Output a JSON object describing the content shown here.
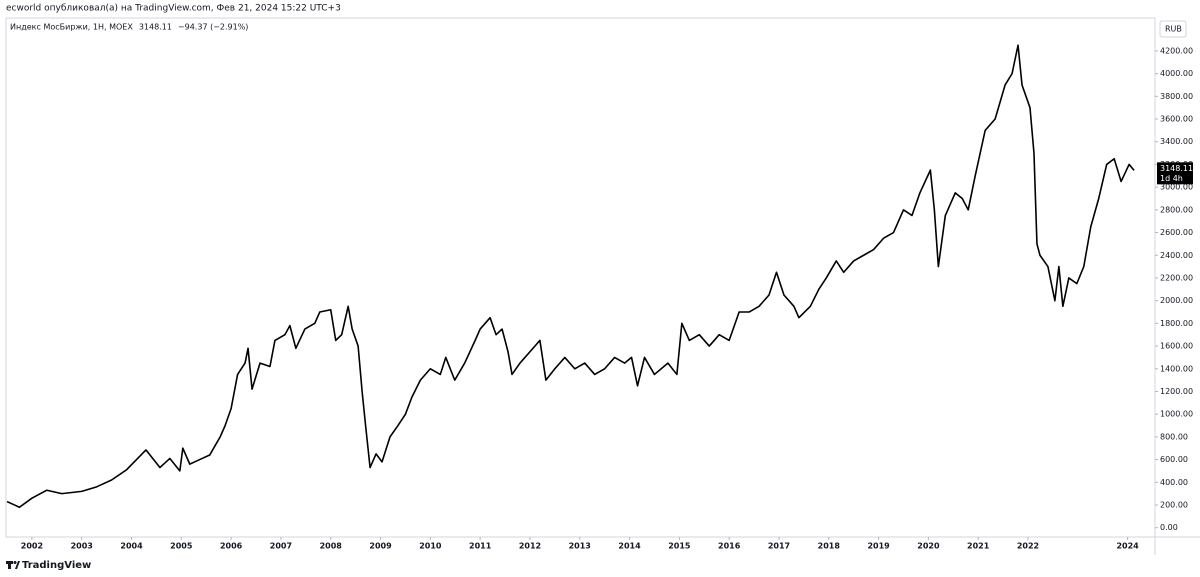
{
  "chart_data": {
    "type": "line",
    "header": "ecworld опубликовал(а) на TradingView.com, Фев 21, 2024 15:22 UTC+3",
    "title": "Индекс МосБиржи, 1Н, MOEX",
    "change": "−94.37 (−2.91%)",
    "currency": "RUB",
    "countdown": "1d 4h",
    "brand": "TradingView",
    "x": [
      2001.5,
      2001.75,
      2002.0,
      2002.3,
      2002.6,
      2003.0,
      2003.3,
      2003.6,
      2003.9,
      2004.29,
      2004.57,
      2004.77,
      2004.97,
      2005.03,
      2005.17,
      2005.37,
      2005.57,
      2005.78,
      2005.88,
      2006.0,
      2006.13,
      2006.28,
      2006.34,
      2006.42,
      2006.58,
      2006.78,
      2006.88,
      2007.08,
      2007.18,
      2007.3,
      2007.48,
      2007.68,
      2007.78,
      2008.0,
      2008.1,
      2008.22,
      2008.35,
      2008.43,
      2008.55,
      2008.63,
      2008.7,
      2008.79,
      2008.91,
      2009.03,
      2009.19,
      2009.35,
      2009.5,
      2009.63,
      2009.8,
      2010.0,
      2010.2,
      2010.31,
      2010.49,
      2010.69,
      2010.9,
      2011.0,
      2011.2,
      2011.32,
      2011.44,
      2011.56,
      2011.64,
      2011.8,
      2012.0,
      2012.2,
      2012.32,
      2012.5,
      2012.7,
      2012.9,
      2013.1,
      2013.3,
      2013.5,
      2013.7,
      2013.9,
      2014.04,
      2014.16,
      2014.3,
      2014.5,
      2014.77,
      2014.95,
      2015.05,
      2015.2,
      2015.4,
      2015.6,
      2015.8,
      2016.0,
      2016.2,
      2016.4,
      2016.6,
      2016.8,
      2016.95,
      2017.1,
      2017.3,
      2017.4,
      2017.63,
      2017.8,
      2017.95,
      2018.15,
      2018.3,
      2018.5,
      2018.7,
      2018.9,
      2019.1,
      2019.3,
      2019.5,
      2019.67,
      2019.83,
      2020.04,
      2020.12,
      2020.2,
      2020.34,
      2020.54,
      2020.68,
      2020.8,
      2020.94,
      2021.14,
      2021.34,
      2021.54,
      2021.68,
      2021.8,
      2021.88,
      2022.04,
      2022.12,
      2022.18,
      2022.24,
      2022.4,
      2022.54,
      2022.62,
      2022.7,
      2022.82,
      2022.98,
      2023.12,
      2023.26,
      2023.42,
      2023.58,
      2023.73,
      2023.87,
      2024.03,
      2024.13
    ],
    "series": [
      {
        "color": "#000000",
        "values": [
          230,
          180,
          260,
          330,
          300,
          320,
          360,
          420,
          510,
          685,
          530,
          610,
          500,
          700,
          560,
          600,
          640,
          800,
          900,
          1050,
          1350,
          1450,
          1580,
          1220,
          1450,
          1420,
          1650,
          1700,
          1780,
          1580,
          1750,
          1800,
          1900,
          1920,
          1650,
          1700,
          1950,
          1750,
          1600,
          1200,
          900,
          530,
          650,
          580,
          800,
          900,
          1000,
          1150,
          1300,
          1400,
          1350,
          1500,
          1300,
          1450,
          1650,
          1750,
          1850,
          1700,
          1750,
          1550,
          1350,
          1450,
          1550,
          1650,
          1300,
          1400,
          1500,
          1400,
          1450,
          1350,
          1400,
          1500,
          1450,
          1500,
          1250,
          1500,
          1350,
          1450,
          1350,
          1800,
          1650,
          1700,
          1600,
          1700,
          1650,
          1900,
          1900,
          1950,
          2050,
          2250,
          2050,
          1950,
          1850,
          1950,
          2100,
          2200,
          2350,
          2250,
          2350,
          2400,
          2450,
          2550,
          2600,
          2800,
          2750,
          2950,
          3150,
          2800,
          2300,
          2750,
          2950,
          2900,
          2800,
          3100,
          3500,
          3600,
          3900,
          4000,
          4250,
          3900,
          3700,
          3300,
          2500,
          2400,
          2300,
          2000,
          2300,
          1950,
          2200,
          2150,
          2300,
          2650,
          2900,
          3200,
          3250,
          3050,
          3200,
          3148.11
        ]
      }
    ],
    "xlim": [
      2001.48,
      2024.55
    ],
    "ylim": [
      -82,
      4490
    ],
    "xticks": [
      2002,
      2003,
      2004,
      2005,
      2006,
      2007,
      2008,
      2009,
      2010,
      2011,
      2012,
      2013,
      2014,
      2015,
      2016,
      2017,
      2018,
      2019,
      2020,
      2021,
      2022,
      2024
    ],
    "yticks": [
      {
        "value": 0,
        "label": "0.00"
      },
      {
        "value": 200,
        "label": "200.00"
      },
      {
        "value": 400,
        "label": "400.00"
      },
      {
        "value": 600,
        "label": "600.00"
      },
      {
        "value": 800,
        "label": "800.00"
      },
      {
        "value": 1000,
        "label": "1000.00"
      },
      {
        "value": 1200,
        "label": "1200.00"
      },
      {
        "value": 1400,
        "label": "1400.00"
      },
      {
        "value": 1600,
        "label": "1600.00"
      },
      {
        "value": 1800,
        "label": "1800.00"
      },
      {
        "value": 2000,
        "label": "2000.00"
      },
      {
        "value": 2200,
        "label": "2200.00"
      },
      {
        "value": 2400,
        "label": "2400.00"
      },
      {
        "value": 2600,
        "label": "2600.00"
      },
      {
        "value": 2800,
        "label": "2800.00"
      },
      {
        "value": 3000,
        "label": "3000.00"
      },
      {
        "value": 3200,
        "label": "3200.00"
      },
      {
        "value": 3400,
        "label": "3400.00"
      },
      {
        "value": 3600,
        "label": "3600.00"
      },
      {
        "value": 3800,
        "label": "3800.00"
      },
      {
        "value": 4000,
        "label": "4000.00"
      },
      {
        "value": 4200,
        "label": "4200.00"
      }
    ],
    "grid": false
  }
}
